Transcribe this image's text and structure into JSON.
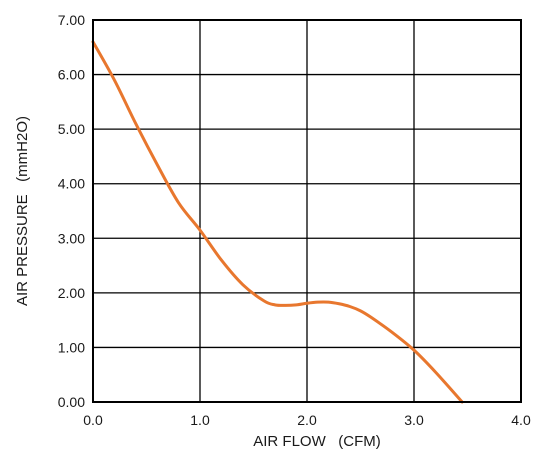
{
  "chart_data": {
    "type": "line",
    "title": "",
    "xlabel": "AIR FLOW   (CFM)",
    "ylabel": "AIR PRESSURE   (mmH2O)",
    "xlim": [
      0,
      4
    ],
    "ylim": [
      0,
      7
    ],
    "x_ticks": [
      "0.0",
      "1.0",
      "2.0",
      "3.0",
      "4.0"
    ],
    "y_ticks": [
      "0.00",
      "1.00",
      "2.00",
      "3.00",
      "4.00",
      "5.00",
      "6.00",
      "7.00"
    ],
    "grid": true,
    "series": [
      {
        "color": "#e8772e",
        "x": [
          0.0,
          0.2,
          0.4,
          0.6,
          0.8,
          1.0,
          1.2,
          1.4,
          1.6,
          1.7,
          1.8,
          1.9,
          2.0,
          2.1,
          2.2,
          2.3,
          2.4,
          2.5,
          2.6,
          2.8,
          3.0,
          3.2,
          3.45
        ],
        "y": [
          6.6,
          5.9,
          5.1,
          4.35,
          3.65,
          3.15,
          2.6,
          2.15,
          1.85,
          1.78,
          1.77,
          1.78,
          1.81,
          1.83,
          1.83,
          1.8,
          1.75,
          1.67,
          1.55,
          1.27,
          0.95,
          0.55,
          0.0
        ]
      }
    ]
  }
}
